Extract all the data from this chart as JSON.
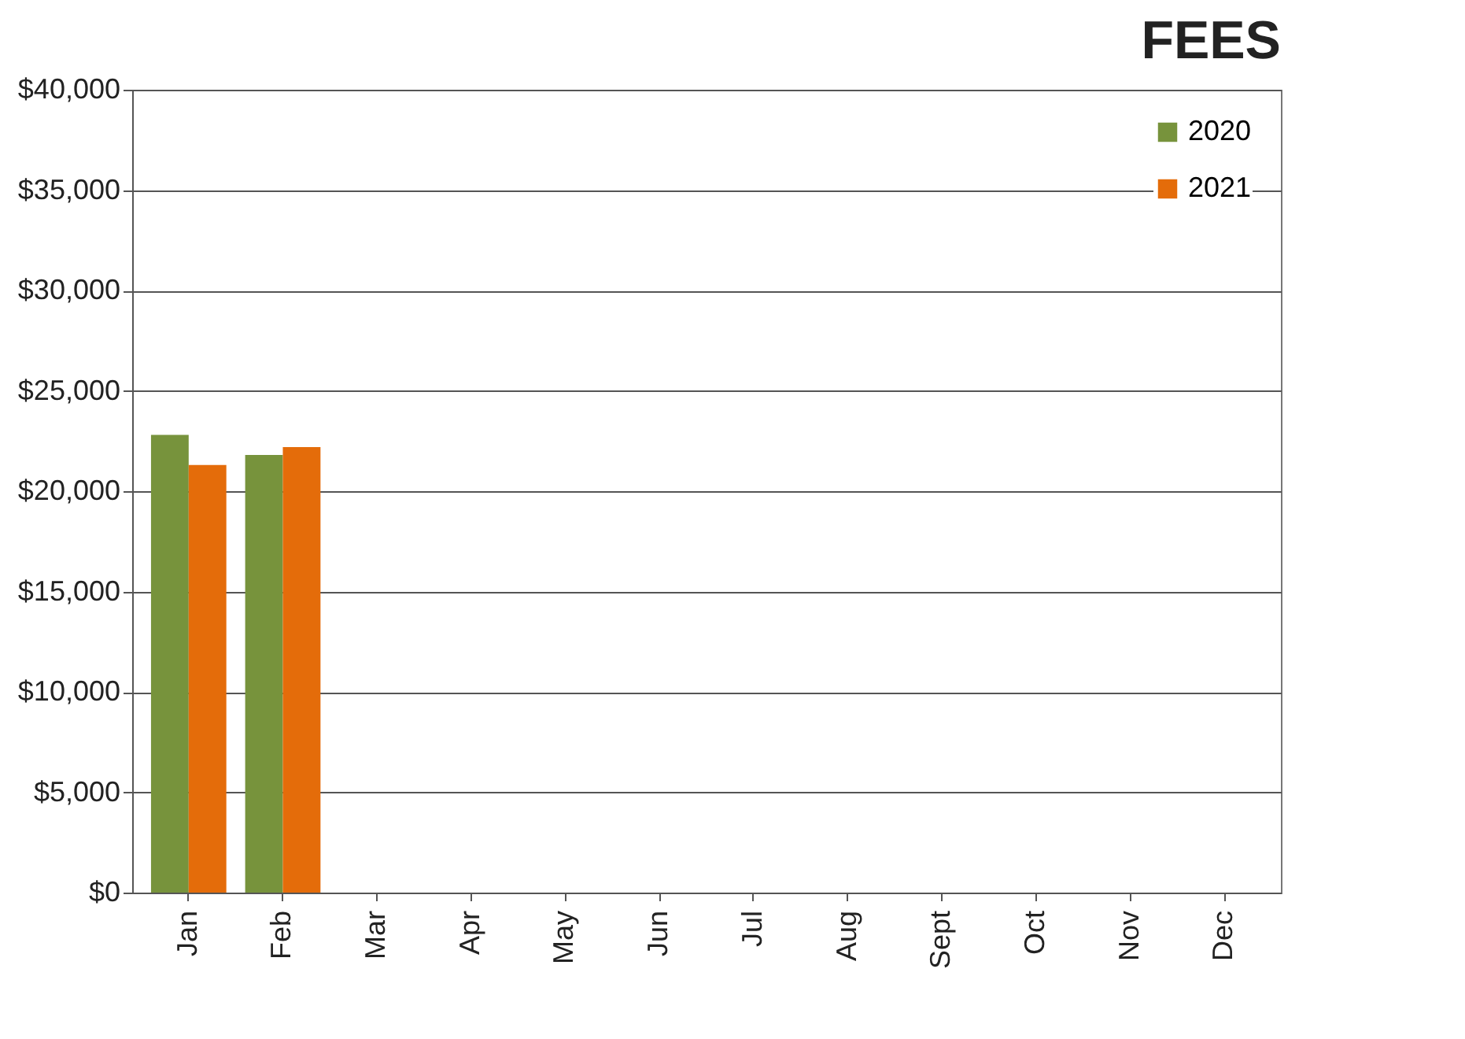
{
  "chart_data": {
    "type": "bar",
    "title": "FEES",
    "categories": [
      "Jan",
      "Feb",
      "Mar",
      "Apr",
      "May",
      "Jun",
      "Jul",
      "Aug",
      "Sept",
      "Oct",
      "Nov",
      "Dec"
    ],
    "series": [
      {
        "name": "2020",
        "color": "#77933c",
        "values": [
          22800,
          21800,
          null,
          null,
          null,
          null,
          null,
          null,
          null,
          null,
          null,
          null
        ]
      },
      {
        "name": "2021",
        "color": "#e46c0a",
        "values": [
          21300,
          22200,
          null,
          null,
          null,
          null,
          null,
          null,
          null,
          null,
          null,
          null
        ]
      }
    ],
    "ylim": [
      0,
      40000
    ],
    "yticks": [
      {
        "value": 0,
        "label": "$0"
      },
      {
        "value": 5000,
        "label": "$5,000"
      },
      {
        "value": 10000,
        "label": "$10,000"
      },
      {
        "value": 15000,
        "label": "$15,000"
      },
      {
        "value": 20000,
        "label": "$20,000"
      },
      {
        "value": 25000,
        "label": "$25,000"
      },
      {
        "value": 30000,
        "label": "$30,000"
      },
      {
        "value": 35000,
        "label": "$35,000"
      },
      {
        "value": 40000,
        "label": "$40,000"
      }
    ],
    "grid": "y",
    "legend": "top right"
  }
}
